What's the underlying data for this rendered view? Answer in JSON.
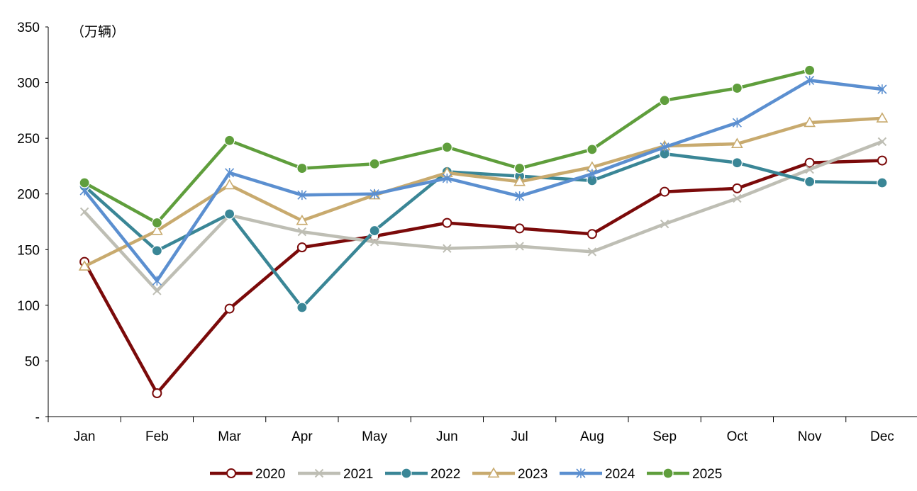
{
  "chart_data": {
    "type": "line",
    "unit_label": "（万辆）",
    "categories": [
      "Jan",
      "Feb",
      "Mar",
      "Apr",
      "May",
      "Jun",
      "Jul",
      "Aug",
      "Sep",
      "Oct",
      "Nov",
      "Dec"
    ],
    "y_ticks": [
      {
        "value": 0,
        "label": "-"
      },
      {
        "value": 50,
        "label": "50"
      },
      {
        "value": 100,
        "label": "100"
      },
      {
        "value": 150,
        "label": "150"
      },
      {
        "value": 200,
        "label": "200"
      },
      {
        "value": 250,
        "label": "250"
      },
      {
        "value": 300,
        "label": "300"
      },
      {
        "value": 350,
        "label": "350"
      }
    ],
    "ylim": [
      0,
      350
    ],
    "grid": false,
    "legend_position": "bottom",
    "series": [
      {
        "name": "2020",
        "color": "#7B0A0A",
        "marker": "open-circle",
        "values": [
          139,
          21,
          97,
          152,
          162,
          174,
          169,
          164,
          202,
          205,
          228,
          230
        ]
      },
      {
        "name": "2021",
        "color": "#BEBEB4",
        "marker": "x",
        "values": [
          184,
          113,
          181,
          166,
          157,
          151,
          153,
          148,
          173,
          196,
          222,
          247
        ]
      },
      {
        "name": "2022",
        "color": "#3A8696",
        "marker": "filled-circle",
        "values": [
          207,
          149,
          182,
          98,
          167,
          220,
          216,
          212,
          236,
          228,
          211,
          210
        ]
      },
      {
        "name": "2023",
        "color": "#C8AA6E",
        "marker": "open-triangle",
        "values": [
          135,
          167,
          208,
          176,
          199,
          219,
          211,
          224,
          243,
          245,
          264,
          268
        ]
      },
      {
        "name": "2024",
        "color": "#5B8FD0",
        "marker": "star",
        "values": [
          203,
          122,
          219,
          199,
          200,
          214,
          198,
          218,
          242,
          264,
          302,
          294
        ]
      },
      {
        "name": "2025",
        "color": "#5F9E3C",
        "marker": "filled-circle",
        "values": [
          210,
          174,
          248,
          223,
          227,
          242,
          223,
          240,
          284,
          295,
          311,
          null
        ]
      }
    ]
  }
}
